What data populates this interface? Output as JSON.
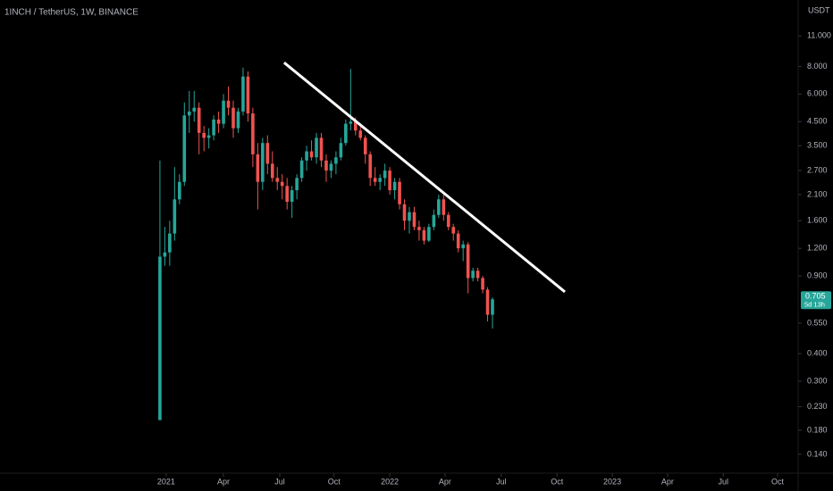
{
  "chart_data": {
    "type": "candlestick",
    "title": "1INCH / TetherUS, 1W, BINANCE",
    "y_axis_label": "USDT",
    "log_scale": true,
    "up_color": "#26a69a",
    "down_color": "#ef5350",
    "categories": [
      null,
      null,
      null,
      null,
      null,
      null,
      null,
      null,
      null,
      null,
      null,
      null,
      null,
      null,
      null,
      null,
      null,
      null,
      null,
      null,
      null,
      null,
      null,
      null,
      null,
      null,
      null,
      null,
      null,
      null,
      null,
      null,
      null,
      null,
      null,
      null,
      null,
      null,
      null,
      null,
      null,
      null,
      null,
      null,
      null,
      null,
      null,
      null,
      null,
      null,
      null,
      null,
      null,
      null,
      null,
      null,
      null,
      null,
      null,
      null,
      null,
      null,
      null,
      null,
      null,
      null,
      null,
      null,
      null
    ],
    "open": [
      0.2,
      1.1,
      1.15,
      1.4,
      2.0,
      2.4,
      4.8,
      5.0,
      5.2,
      4.0,
      3.8,
      3.9,
      4.6,
      4.4,
      5.6,
      5.2,
      4.2,
      5.0,
      7.2,
      4.9,
      3.2,
      2.4,
      3.6,
      2.9,
      2.5,
      2.4,
      2.3,
      1.95,
      2.2,
      2.5,
      3.0,
      3.3,
      3.1,
      3.8,
      3.0,
      2.7,
      2.9,
      3.1,
      3.6,
      4.4,
      4.5,
      4.1,
      3.8,
      3.2,
      2.5,
      2.4,
      2.5,
      2.7,
      2.2,
      2.4,
      1.9,
      1.6,
      1.75,
      1.5,
      1.45,
      1.3,
      1.5,
      1.7,
      2.0,
      1.7,
      1.5,
      1.4,
      1.2,
      1.25,
      0.88,
      0.95,
      0.88,
      0.78,
      0.6
    ],
    "high": [
      3.0,
      1.5,
      1.6,
      2.8,
      2.6,
      5.5,
      6.2,
      6.2,
      5.5,
      4.3,
      4.2,
      4.8,
      5.0,
      6.0,
      6.5,
      5.6,
      5.2,
      7.9,
      7.6,
      5.2,
      3.6,
      3.8,
      3.9,
      3.3,
      2.8,
      2.6,
      2.5,
      2.3,
      2.6,
      3.1,
      3.5,
      3.7,
      4.0,
      4.0,
      3.2,
      3.0,
      3.3,
      3.8,
      4.6,
      7.8,
      4.7,
      4.3,
      3.9,
      3.3,
      2.8,
      2.6,
      2.9,
      2.8,
      2.5,
      2.5,
      2.0,
      1.85,
      1.85,
      1.6,
      1.5,
      1.55,
      1.8,
      2.1,
      2.1,
      1.75,
      1.55,
      1.45,
      1.3,
      1.28,
      0.98,
      0.98,
      0.9,
      0.8,
      0.72
    ],
    "low": [
      0.2,
      1.0,
      1.0,
      1.3,
      1.9,
      2.3,
      4.0,
      4.5,
      3.2,
      3.3,
      3.4,
      3.7,
      4.0,
      4.2,
      4.8,
      3.8,
      4.0,
      4.8,
      4.5,
      2.8,
      1.8,
      2.2,
      2.6,
      2.4,
      2.2,
      2.0,
      1.8,
      1.65,
      2.0,
      2.4,
      2.7,
      3.0,
      2.9,
      2.8,
      2.4,
      2.5,
      2.6,
      3.0,
      3.5,
      4.1,
      3.9,
      3.7,
      2.9,
      2.3,
      2.3,
      2.2,
      2.3,
      2.1,
      2.0,
      1.8,
      1.45,
      1.4,
      1.45,
      1.3,
      1.25,
      1.28,
      1.45,
      1.65,
      1.6,
      1.45,
      1.3,
      1.15,
      1.05,
      0.75,
      0.85,
      0.85,
      0.75,
      0.56,
      0.52
    ],
    "close": [
      1.1,
      1.15,
      1.4,
      2.0,
      2.4,
      4.8,
      5.0,
      5.2,
      4.0,
      3.8,
      3.9,
      4.6,
      4.4,
      5.6,
      5.2,
      4.2,
      5.0,
      7.2,
      4.9,
      3.2,
      2.4,
      3.6,
      2.9,
      2.5,
      2.4,
      2.3,
      1.95,
      2.2,
      2.5,
      3.0,
      3.3,
      3.1,
      3.8,
      3.0,
      2.7,
      2.9,
      3.1,
      3.6,
      4.4,
      4.5,
      4.1,
      3.8,
      3.2,
      2.5,
      2.4,
      2.5,
      2.7,
      2.2,
      2.4,
      1.9,
      1.6,
      1.75,
      1.5,
      1.45,
      1.3,
      1.5,
      1.7,
      2.0,
      1.7,
      1.5,
      1.4,
      1.2,
      1.25,
      0.88,
      0.95,
      0.88,
      0.78,
      0.6,
      0.705
    ],
    "last_price": 0.705,
    "countdown": "5d 13h",
    "trendline": {
      "x": [
        25.4,
        82.8
      ],
      "y": [
        8.32,
        0.762
      ],
      "color": "#ffffff"
    },
    "xlim": [
      -32.7,
      130.5
    ],
    "xticks": [
      {
        "value": 1.28,
        "label": "2021"
      },
      {
        "value": 12.98,
        "label": "Apr"
      },
      {
        "value": 24.5,
        "label": "Jul"
      },
      {
        "value": 35.6,
        "label": "Oct"
      },
      {
        "value": 47.0,
        "label": "2022"
      },
      {
        "value": 58.3,
        "label": "Apr"
      },
      {
        "value": 69.8,
        "label": "Jul"
      },
      {
        "value": 81.2,
        "label": "Oct"
      },
      {
        "value": 92.5,
        "label": "2023"
      },
      {
        "value": 103.8,
        "label": "Apr"
      },
      {
        "value": 115.2,
        "label": "Jul"
      },
      {
        "value": 126.3,
        "label": "Oct"
      }
    ],
    "ylim": [
      0.115,
      16
    ],
    "yticks": [
      {
        "value": 11,
        "label": "11.000"
      },
      {
        "value": 8,
        "label": "8.000"
      },
      {
        "value": 6,
        "label": "6.000"
      },
      {
        "value": 4.5,
        "label": "4.500"
      },
      {
        "value": 3.5,
        "label": "3.500"
      },
      {
        "value": 2.7,
        "label": "2.700"
      },
      {
        "value": 2.1,
        "label": "2.100"
      },
      {
        "value": 1.6,
        "label": "1.600"
      },
      {
        "value": 1.2,
        "label": "1.200"
      },
      {
        "value": 0.9,
        "label": "0.900"
      },
      {
        "value": 0.55,
        "label": "0.550"
      },
      {
        "value": 0.4,
        "label": "0.400"
      },
      {
        "value": 0.3,
        "label": "0.300"
      },
      {
        "value": 0.23,
        "label": "0.230"
      },
      {
        "value": 0.18,
        "label": "0.180"
      },
      {
        "value": 0.14,
        "label": "0.140"
      }
    ]
  }
}
